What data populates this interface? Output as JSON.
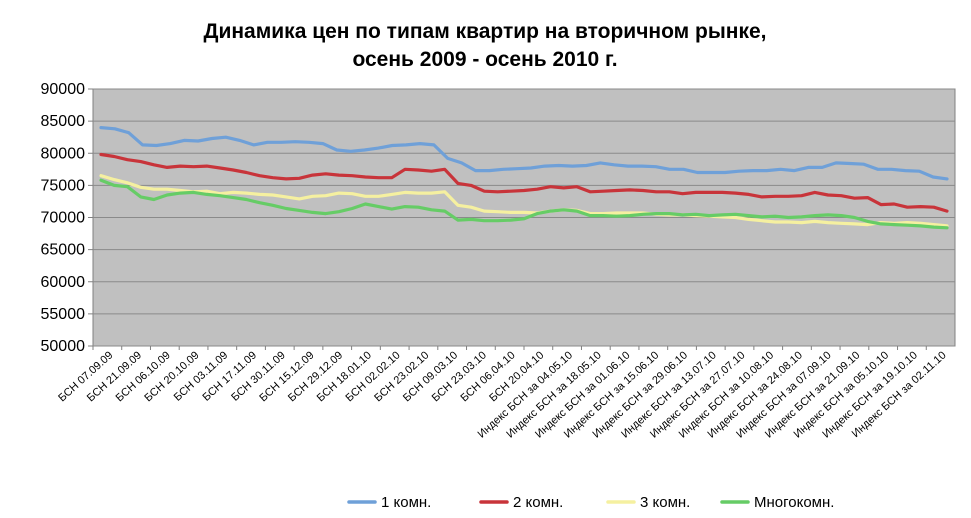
{
  "chart_data": {
    "type": "line",
    "title_lines": [
      "Динамика цен по типам квартир на вторичном рынке,",
      "осень 2009 - осень 2010 г."
    ],
    "xlabel": "",
    "ylabel": "",
    "ylim": [
      50000,
      90000
    ],
    "yticks": [
      50000,
      55000,
      60000,
      65000,
      70000,
      75000,
      80000,
      85000,
      90000
    ],
    "ytick_labels": [
      "50000",
      "55000",
      "60000",
      "65000",
      "70000",
      "75000",
      "80000",
      "85000",
      "90000"
    ],
    "grid": true,
    "plot_background": "#c0c0c0",
    "legend_position": "bottom",
    "x_labels": [
      "БСН 07.09.09",
      "БСН 21.09.09",
      "БСН 06.10.09",
      "БСН 20.10.09",
      "БСН 03.11.09",
      "БСН 17.11.09",
      "БСН 30.11.09",
      "БСН 15.12.09",
      "БСН 29.12.09",
      "БСН 18.01.10",
      "БСН 02.02.10",
      "БСН 23.02.10",
      "БСН 09.03.10",
      "БСН 23.03.10",
      "БСН 06.04.10",
      "БСН 20.04.10",
      "Индекс БСН за 04.05.10",
      "Индекс БСН за 18.05.10",
      "Индекс БСН за 01.06.10",
      "Индекс БСН за 15.06.10",
      "Индекс БСН за 29.06.10",
      "Индекс БСН за 13.07.10",
      "Индекс БСН за 27.07.10",
      "Индекс БСН за 10.08.10",
      "Индекс БСН за 24.08.10",
      "Индекс БСН за 07.09.10",
      "Индекс БСН за 21.09.10",
      "Индекс БСН за 05.10.10",
      "Индекс БСН за 19.10.10",
      "Индекс БСН за 02.11.10"
    ],
    "series": [
      {
        "name": "1 комн.",
        "color": "#6fa0d8",
        "values": [
          84000,
          83800,
          83200,
          81300,
          81200,
          81500,
          82000,
          81900,
          82300,
          82500,
          82000,
          81300,
          81700,
          81700,
          81800,
          81700,
          81500,
          80500,
          80300,
          80500,
          80800,
          81200,
          81300,
          81500,
          81300,
          79200,
          78500,
          77300,
          77300,
          77500,
          77600,
          77700,
          78000,
          78100,
          78000,
          78100,
          78500,
          78200,
          78000,
          78000,
          77900,
          77500,
          77500,
          77000,
          77000,
          77000,
          77200,
          77300,
          77300,
          77500,
          77300,
          77800,
          77800,
          78500,
          78400,
          78300,
          77500,
          77500,
          77300,
          77200,
          76300,
          76000
        ]
      },
      {
        "name": "2 комн.",
        "color": "#c8343a",
        "values": [
          79800,
          79500,
          79000,
          78700,
          78200,
          77800,
          78000,
          77900,
          78000,
          77700,
          77400,
          77000,
          76500,
          76200,
          76000,
          76100,
          76600,
          76800,
          76600,
          76500,
          76300,
          76200,
          76200,
          77500,
          77400,
          77200,
          77500,
          75300,
          75000,
          74100,
          74000,
          74100,
          74200,
          74400,
          74800,
          74600,
          74800,
          74000,
          74100,
          74200,
          74300,
          74200,
          74000,
          74000,
          73700,
          73900,
          73900,
          73900,
          73800,
          73600,
          73200,
          73300,
          73300,
          73400,
          73900,
          73500,
          73400,
          73000,
          73100,
          72000,
          72100,
          71600,
          71700,
          71600,
          71000
        ]
      },
      {
        "name": "3 комн.",
        "color": "#f5f0a0",
        "values": [
          76500,
          75900,
          75400,
          74700,
          74400,
          74400,
          74200,
          74000,
          74100,
          73700,
          73900,
          73800,
          73600,
          73500,
          73200,
          72900,
          73300,
          73400,
          73800,
          73700,
          73300,
          73300,
          73600,
          73900,
          73800,
          73800,
          74000,
          71900,
          71600,
          71000,
          70900,
          70800,
          70800,
          70700,
          71000,
          71200,
          71100,
          70600,
          70600,
          70700,
          70700,
          70700,
          70500,
          70400,
          70400,
          70300,
          70200,
          70100,
          70000,
          69700,
          69500,
          69300,
          69300,
          69200,
          69400,
          69200,
          69100,
          69000,
          68900,
          69200,
          69100,
          69200,
          69100,
          68900,
          68700
        ]
      },
      {
        "name": "Многокомн.",
        "color": "#66cc66",
        "values": [
          75800,
          75000,
          74800,
          73200,
          72800,
          73500,
          73800,
          73900,
          73600,
          73400,
          73100,
          72800,
          72300,
          71900,
          71400,
          71100,
          70800,
          70600,
          70900,
          71400,
          72100,
          71700,
          71300,
          71700,
          71600,
          71200,
          71000,
          69600,
          69700,
          69500,
          69500,
          69600,
          69800,
          70600,
          71000,
          71200,
          71000,
          70300,
          70300,
          70200,
          70300,
          70500,
          70600,
          70600,
          70400,
          70500,
          70300,
          70400,
          70500,
          70300,
          70100,
          70200,
          70000,
          70100,
          70300,
          70400,
          70300,
          70000,
          69400,
          69000,
          68900,
          68800,
          68700,
          68500,
          68400
        ]
      }
    ]
  }
}
